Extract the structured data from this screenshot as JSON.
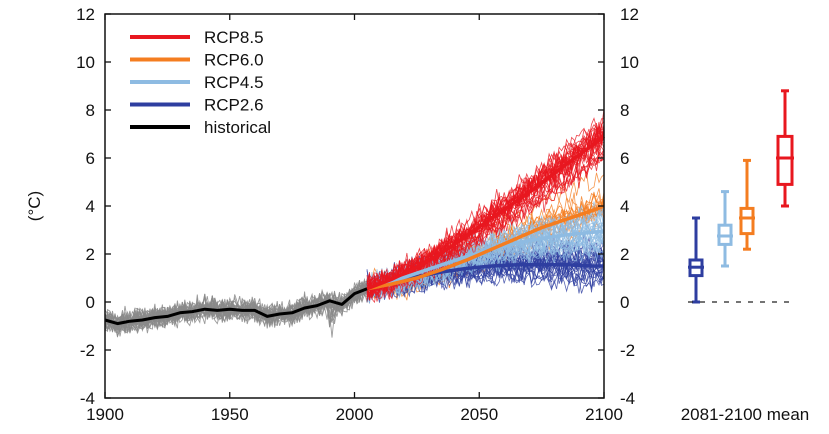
{
  "chart_data": {
    "type": "line",
    "title": "",
    "xlabel": "",
    "ylabel": "(°C)",
    "xlim": [
      1900,
      2100
    ],
    "ylim": [
      -4,
      12
    ],
    "x_ticks": [
      1900,
      1950,
      2000,
      2050,
      2100
    ],
    "y_ticks": [
      -4,
      -2,
      0,
      2,
      4,
      6,
      8,
      10,
      12
    ],
    "right_axis_ticks": [
      -4,
      -2,
      0,
      2,
      4,
      6,
      8,
      10,
      12
    ],
    "legend_placement": "top-left",
    "colors": {
      "RCP8.5": "#e8171f",
      "RCP6.0": "#f47d20",
      "RCP4.5": "#8ebbe2",
      "RCP2.6": "#2e3ea0",
      "historical": "#000000",
      "ensemble_historical": "#8a8a8a"
    },
    "series": [
      {
        "name": "historical",
        "x": [
          1900,
          1905,
          1910,
          1915,
          1920,
          1925,
          1930,
          1935,
          1940,
          1945,
          1950,
          1955,
          1960,
          1965,
          1970,
          1975,
          1980,
          1985,
          1990,
          1995,
          2000,
          2005
        ],
        "values": [
          -0.75,
          -0.9,
          -0.8,
          -0.75,
          -0.65,
          -0.6,
          -0.45,
          -0.4,
          -0.3,
          -0.35,
          -0.3,
          -0.35,
          -0.35,
          -0.6,
          -0.5,
          -0.45,
          -0.25,
          -0.15,
          0.05,
          -0.1,
          0.35,
          0.55
        ]
      },
      {
        "name": "RCP2.6",
        "x": [
          2005,
          2015,
          2025,
          2035,
          2045,
          2055,
          2065,
          2075,
          2085,
          2095,
          2100
        ],
        "values": [
          0.55,
          0.8,
          1.05,
          1.25,
          1.4,
          1.5,
          1.55,
          1.55,
          1.55,
          1.5,
          1.5
        ]
      },
      {
        "name": "RCP4.5",
        "x": [
          2005,
          2015,
          2025,
          2035,
          2045,
          2055,
          2065,
          2075,
          2085,
          2095,
          2100
        ],
        "values": [
          0.55,
          0.85,
          1.2,
          1.55,
          1.9,
          2.2,
          2.45,
          2.65,
          2.8,
          2.9,
          2.95
        ]
      },
      {
        "name": "RCP6.0",
        "x": [
          2005,
          2015,
          2025,
          2035,
          2045,
          2055,
          2065,
          2075,
          2085,
          2095,
          2100
        ],
        "values": [
          0.55,
          0.75,
          1.0,
          1.35,
          1.75,
          2.2,
          2.65,
          3.1,
          3.45,
          3.8,
          4.0
        ]
      },
      {
        "name": "RCP8.5",
        "x": [
          2005,
          2015,
          2025,
          2035,
          2045,
          2055,
          2065,
          2075,
          2085,
          2095,
          2100
        ],
        "values": [
          0.55,
          0.95,
          1.45,
          2.05,
          2.75,
          3.5,
          4.2,
          4.95,
          5.75,
          6.5,
          6.9
        ]
      }
    ],
    "boxplots": {
      "label": "2081-2100 mean",
      "items": [
        {
          "name": "RCP2.6",
          "min": 0.0,
          "q1": 1.1,
          "median": 1.45,
          "q3": 1.75,
          "max": 3.5
        },
        {
          "name": "RCP4.5",
          "min": 1.5,
          "q1": 2.4,
          "median": 2.75,
          "q3": 3.2,
          "max": 4.6
        },
        {
          "name": "RCP6.0",
          "min": 2.2,
          "q1": 2.85,
          "median": 3.5,
          "q3": 3.9,
          "max": 5.9
        },
        {
          "name": "RCP8.5",
          "min": 4.0,
          "q1": 4.9,
          "median": 6.0,
          "q3": 6.9,
          "max": 8.8
        }
      ]
    }
  }
}
